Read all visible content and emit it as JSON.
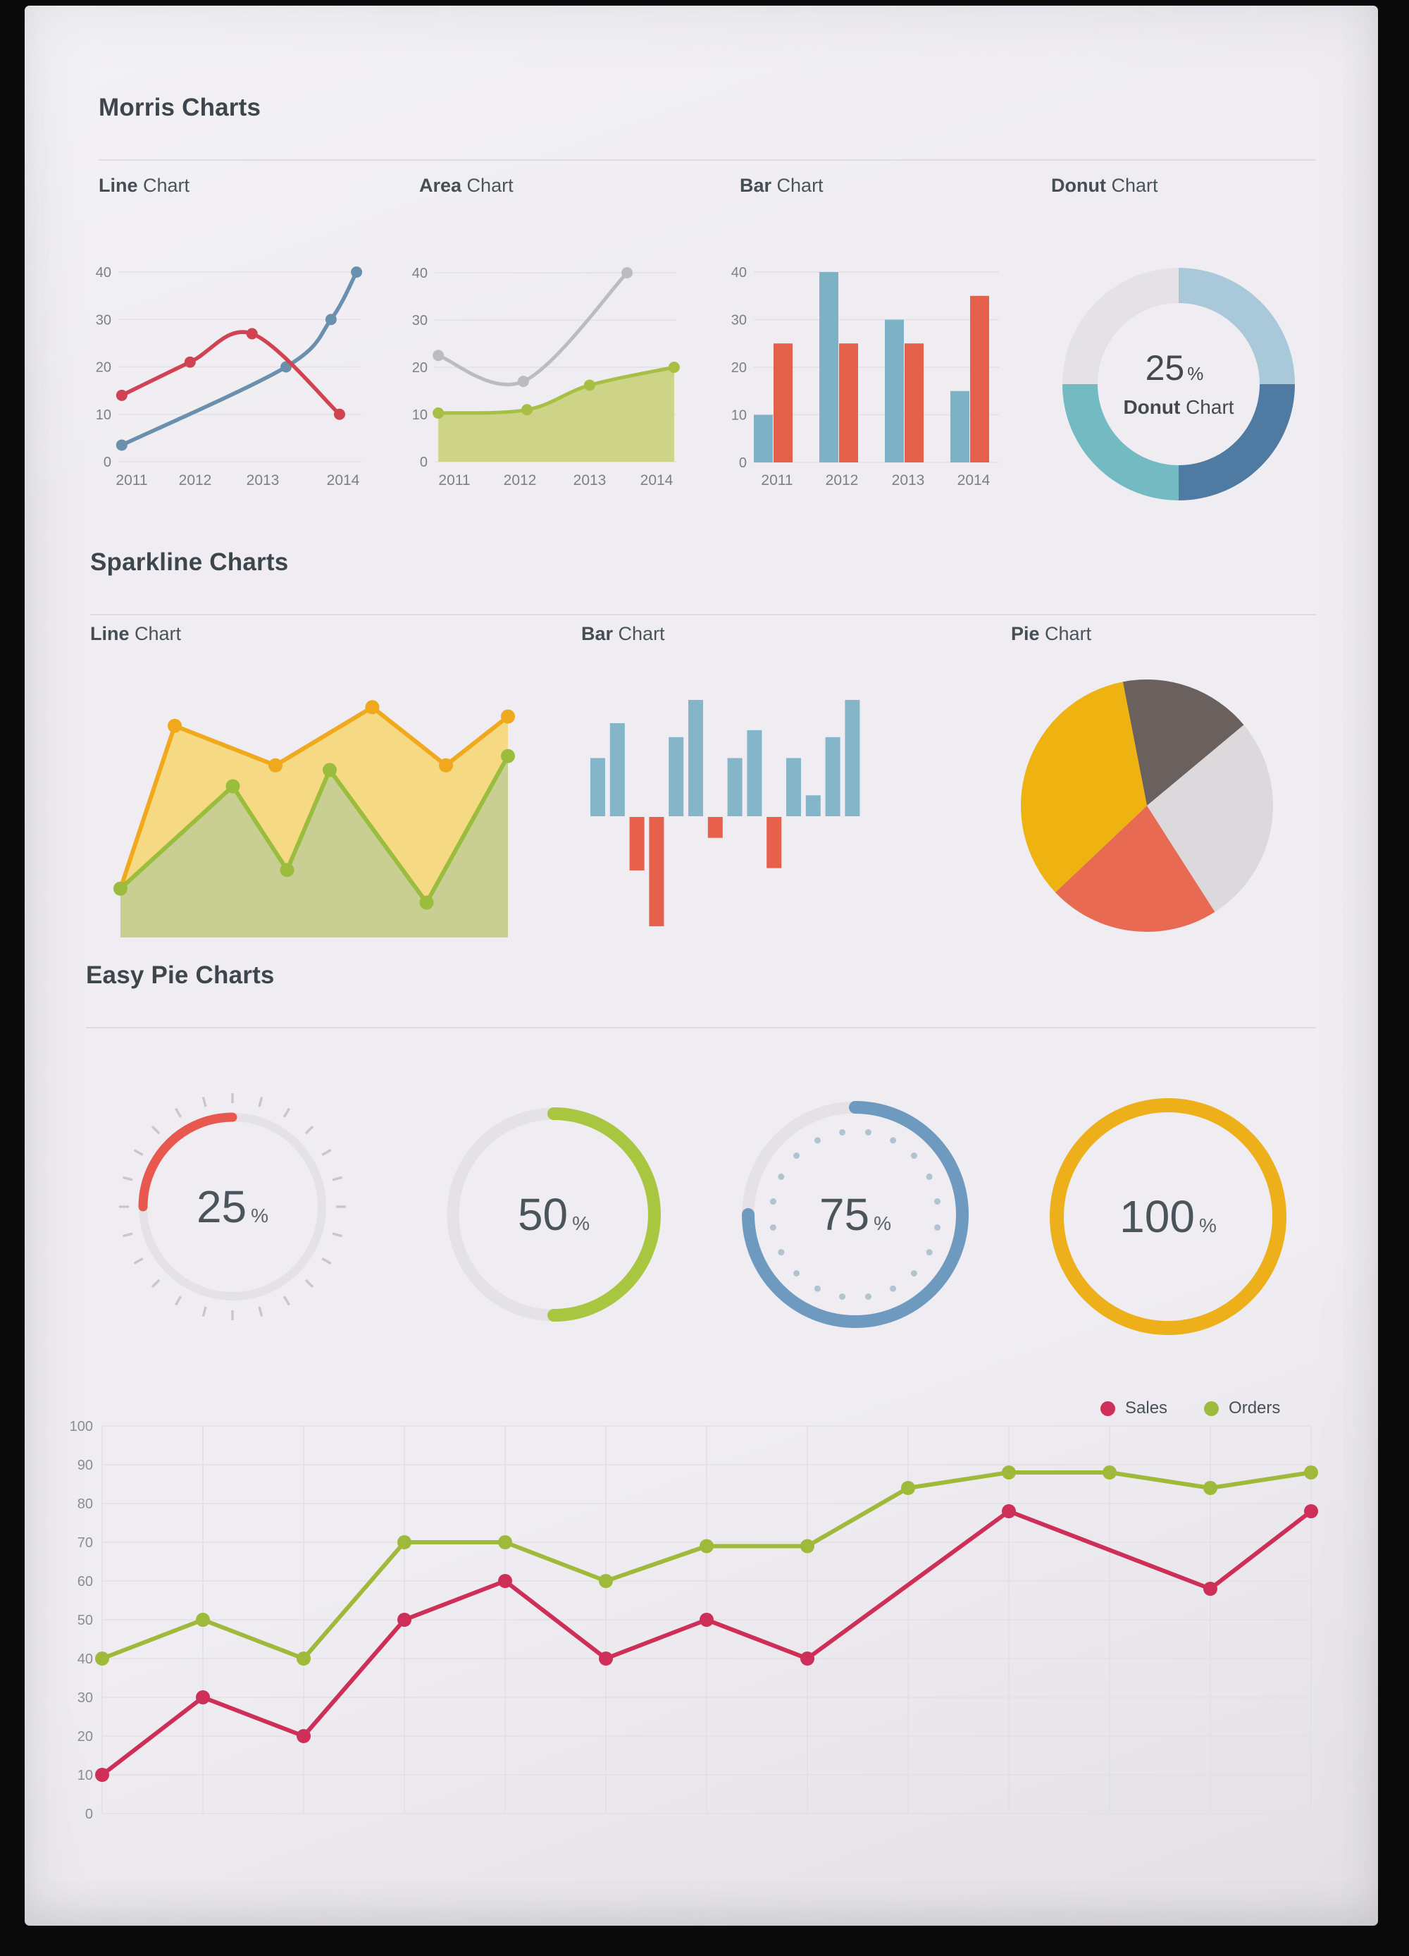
{
  "page": {
    "background": "#0a0a0b",
    "paper_color": "#efedf1"
  },
  "sections": {
    "morris": {
      "title": "Morris Charts",
      "subtitles": [
        {
          "bold": "Line",
          "rest": " Chart"
        },
        {
          "bold": "Area",
          "rest": " Chart"
        },
        {
          "bold": "Bar",
          "rest": " Chart"
        },
        {
          "bold": "Donut",
          "rest": " Chart"
        }
      ]
    },
    "sparkline": {
      "title": "Sparkline Charts",
      "subtitles": [
        {
          "bold": "Line",
          "rest": " Chart"
        },
        {
          "bold": "Bar",
          "rest": " Chart"
        },
        {
          "bold": "Pie",
          "rest": " Chart"
        }
      ]
    },
    "easypie": {
      "title": "Easy Pie Charts"
    }
  },
  "chart_data": [
    {
      "id": "morris-line",
      "type": "line",
      "x_labels": [
        "2011",
        "2012",
        "2013",
        "2014"
      ],
      "y_ticks": [
        40,
        30,
        20,
        10,
        0
      ],
      "ylim": [
        0,
        40
      ],
      "grid": true,
      "series": [
        {
          "name": "blue",
          "color": "#6a90ae",
          "points": [
            [
              0.014,
              3.5
            ],
            [
              0.69,
              20
            ],
            [
              0.875,
              30
            ],
            [
              0.98,
              40
            ]
          ]
        },
        {
          "name": "red",
          "color": "#d04352",
          "points": [
            [
              0.014,
              14
            ],
            [
              0.295,
              21
            ],
            [
              0.55,
              27
            ],
            [
              0.91,
              10
            ]
          ]
        }
      ]
    },
    {
      "id": "morris-area",
      "type": "area",
      "x_labels": [
        "2011",
        "2012",
        "2013",
        "2014"
      ],
      "y_ticks": [
        40,
        30,
        20,
        10,
        0
      ],
      "ylim": [
        0,
        40
      ],
      "grid": true,
      "series": [
        {
          "name": "gray",
          "color": "#bcbcbe",
          "fill": "none",
          "points": [
            [
              0.015,
              22.5
            ],
            [
              0.367,
              17
            ],
            [
              0.796,
              40
            ]
          ]
        },
        {
          "name": "green",
          "color": "#a8bf45",
          "fill": "#cdd387",
          "points": [
            [
              0.015,
              10.3
            ],
            [
              0.382,
              11
            ],
            [
              0.641,
              16.2
            ],
            [
              0.991,
              20
            ]
          ]
        }
      ]
    },
    {
      "id": "morris-bar",
      "type": "bar",
      "categories": [
        "2011",
        "2012",
        "2013",
        "2014"
      ],
      "y_ticks": [
        40,
        30,
        20,
        10,
        0
      ],
      "ylim": [
        0,
        40
      ],
      "grid": true,
      "series": [
        {
          "name": "blue",
          "color": "#7cb1c6",
          "values": [
            10,
            40,
            30,
            15
          ]
        },
        {
          "name": "red",
          "color": "#e5604a",
          "values": [
            25,
            25,
            25,
            35
          ]
        }
      ]
    },
    {
      "id": "morris-donut",
      "type": "pie",
      "center_value": "25",
      "center_unit": "%",
      "center_label_bold": "Donut",
      "center_label_rest": " Chart",
      "segments": [
        {
          "name": "light-blue",
          "color": "#a9c8da",
          "value": 25
        },
        {
          "name": "steel-blue",
          "color": "#4f7ba3",
          "value": 25
        },
        {
          "name": "teal",
          "color": "#74bac3",
          "value": 25
        },
        {
          "name": "light-gray",
          "color": "#e4e2e6",
          "value": 25
        }
      ]
    },
    {
      "id": "spark-area",
      "type": "area",
      "ylim": [
        0,
        100
      ],
      "grid": false,
      "series": [
        {
          "name": "orange",
          "color": "#f0a81c",
          "fill": "#f6d983",
          "points": [
            [
              0,
              21
            ],
            [
              0.14,
              91
            ],
            [
              0.4,
              74
            ],
            [
              0.65,
              99
            ],
            [
              0.84,
              74
            ],
            [
              1,
              95
            ]
          ]
        },
        {
          "name": "green",
          "color": "#9abd3e",
          "fill": "#c6cd94",
          "points": [
            [
              0,
              21
            ],
            [
              0.29,
              65
            ],
            [
              0.43,
              29
            ],
            [
              0.54,
              72
            ],
            [
              0.79,
              15
            ],
            [
              1,
              78
            ]
          ]
        }
      ]
    },
    {
      "id": "spark-bar",
      "type": "bar",
      "positive_color": "#84b5c9",
      "negative_color": "#e7604b",
      "values": [
        2.5,
        4,
        -2.3,
        -4.7,
        3.4,
        5,
        -0.9,
        2.5,
        3.7,
        -2.2,
        2.5,
        0.9,
        3.4,
        5
      ]
    },
    {
      "id": "spark-pie",
      "type": "pie",
      "start_angle": -11,
      "slices": [
        {
          "name": "dark-gray",
          "color": "#6a605e",
          "value": 17
        },
        {
          "name": "light-gray",
          "color": "#dbd9db",
          "value": 27
        },
        {
          "name": "red",
          "color": "#e86a53",
          "value": 22
        },
        {
          "name": "yellow",
          "color": "#efb311",
          "value": 34
        }
      ]
    },
    {
      "id": "easy-pies",
      "type": "gauge",
      "track_color": "#e4e2e5",
      "unit": "%",
      "items": [
        {
          "value": "25",
          "color": "#e8584e",
          "decor": "outer-ticks",
          "arc_start": 270,
          "arc_end": 360
        },
        {
          "value": "50",
          "color": "#a9c640",
          "decor": "none",
          "arc_start": 0,
          "arc_end": 180
        },
        {
          "value": "75",
          "color": "#6e9ac0",
          "decor": "inner-dots",
          "arc_start": 0,
          "arc_end": 270
        },
        {
          "value": "100",
          "color": "#edb01b",
          "decor": "none",
          "arc_start": 0,
          "arc_end": 360
        }
      ]
    },
    {
      "id": "flot-line",
      "type": "line",
      "y_ticks": [
        100,
        90,
        80,
        70,
        60,
        50,
        40,
        30,
        20,
        10,
        0
      ],
      "ylim": [
        0,
        100
      ],
      "x_count": 13,
      "grid": true,
      "legend": [
        {
          "label": "Sales",
          "color": "#ce2f58"
        },
        {
          "label": "Orders",
          "color": "#9fba3a"
        }
      ],
      "series": [
        {
          "name": "Sales",
          "color": "#ce2f58",
          "points": [
            [
              0,
              10
            ],
            [
              1,
              30
            ],
            [
              2,
              20
            ],
            [
              3,
              50
            ],
            [
              4,
              60
            ],
            [
              5,
              40
            ],
            [
              6,
              50
            ],
            [
              7,
              40
            ],
            [
              9,
              78
            ],
            [
              11,
              58
            ],
            [
              12,
              78
            ]
          ]
        },
        {
          "name": "Orders",
          "color": "#9fba3a",
          "points": [
            [
              0,
              40
            ],
            [
              1,
              50
            ],
            [
              2,
              40
            ],
            [
              3,
              70
            ],
            [
              4,
              70
            ],
            [
              5,
              60
            ],
            [
              6,
              69
            ],
            [
              7,
              69
            ],
            [
              8,
              84
            ],
            [
              9,
              88
            ],
            [
              10,
              88
            ],
            [
              11,
              84
            ],
            [
              12,
              88
            ]
          ]
        }
      ]
    }
  ]
}
